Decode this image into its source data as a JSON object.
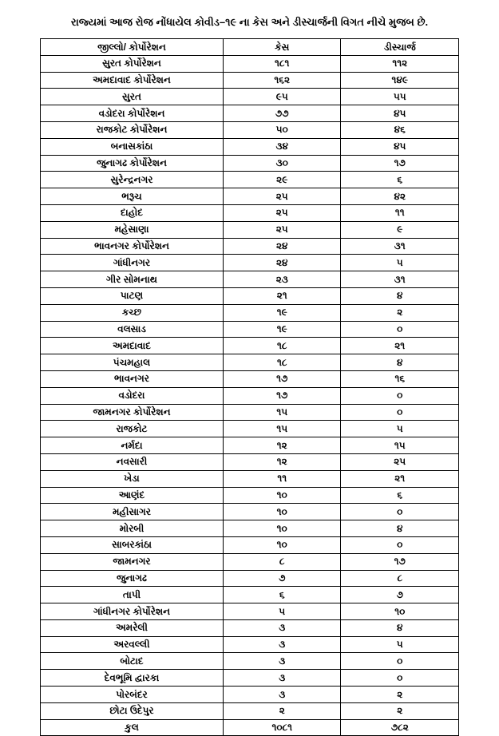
{
  "title": "રાજ્યમાં આજ રોજ નોંધાયેલ કોવીડ–૧૯ ના કેસ અને ડીસ્ચાર્જની વિગત નીચે મુજબ છે.",
  "columns": [
    "જીલ્લો/ કોર્પોરેશન",
    "કેસ",
    "ડીસ્ચાર્જ"
  ],
  "rows": [
    [
      "સુરત કોર્પોરેશન",
      "૧૮૧",
      "૧૧૨"
    ],
    [
      "અમદાવાદ કોર્પોરેશન",
      "૧૬૨",
      "૧૪૯"
    ],
    [
      "સુરત",
      "૯૫",
      "૫૫"
    ],
    [
      "વડોદરા કોર્પોરેશન",
      "૭૭",
      "૪૫"
    ],
    [
      "રાજકોટ કોર્પોરેશન",
      "૫૦",
      "૪૬"
    ],
    [
      "બનાસકાંઠા",
      "૩૪",
      "૪૫"
    ],
    [
      "જુનાગઢ કોર્પોરેશન",
      "૩૦",
      "૧૭"
    ],
    [
      "સુરેન્દ્રનગર",
      "૨૯",
      "૬"
    ],
    [
      "ભરૂચ",
      "૨૫",
      "૪૨"
    ],
    [
      "દાહોદ",
      "૨૫",
      "૧૧"
    ],
    [
      "મહેસાણા",
      "૨૫",
      "૯"
    ],
    [
      "ભાવનગર કોર્પોરેશન",
      "૨૪",
      "૩૧"
    ],
    [
      "ગાંધીનગર",
      "૨૪",
      "૫"
    ],
    [
      "ગીર સોમનાથ",
      "૨૩",
      "૩૧"
    ],
    [
      "પાટણ",
      "૨૧",
      "૪"
    ],
    [
      "કચ્છ",
      "૧૯",
      "૨"
    ],
    [
      "વલસાડ",
      "૧૯",
      "૦"
    ],
    [
      "અમદાવાદ",
      "૧૮",
      "૨૧"
    ],
    [
      "પંચમહાલ",
      "૧૮",
      "૪"
    ],
    [
      "ભાવનગર",
      "૧૭",
      "૧૬"
    ],
    [
      "વડોદરા",
      "૧૭",
      "૦"
    ],
    [
      "જામનગર કોર્પોરેશન",
      "૧૫",
      "૦"
    ],
    [
      "રાજકોટ",
      "૧૫",
      "૫"
    ],
    [
      "નર્મદા",
      "૧૨",
      "૧૫"
    ],
    [
      "નવસારી",
      "૧૨",
      "૨૫"
    ],
    [
      "ખેડા",
      "૧૧",
      "૨૧"
    ],
    [
      "આણંદ",
      "૧૦",
      "૬"
    ],
    [
      "મહીસાગર",
      "૧૦",
      "૦"
    ],
    [
      "મોરબી",
      "૧૦",
      "૪"
    ],
    [
      "સાબરકાંઠા",
      "૧૦",
      "૦"
    ],
    [
      "જામનગર",
      "૮",
      "૧૭"
    ],
    [
      "જુનાગઢ",
      "૭",
      "૮"
    ],
    [
      "તાપી",
      "૬",
      "૭"
    ],
    [
      "ગાંધીનગર કોર્પોરેશન",
      "૫",
      "૧૦"
    ],
    [
      "અમરેલી",
      "૩",
      "૪"
    ],
    [
      "અરવલ્લી",
      "૩",
      "૫"
    ],
    [
      "બોટાદ",
      "૩",
      "૦"
    ],
    [
      "દેવભૂમિ દ્વારકા",
      "૩",
      "૦"
    ],
    [
      "પોરબંદર",
      "૩",
      "૨"
    ],
    [
      "છોટા ઉદેપુર",
      "૨",
      "૨"
    ],
    [
      "કુલ",
      "૧૦૮૧",
      "૭૮૨"
    ]
  ],
  "styling": {
    "page_bg": "#ffffff",
    "text_color": "#000000",
    "border_color": "#000000",
    "title_fontsize": 13,
    "cell_fontsize": 12,
    "col_widths_pct": [
      44,
      28,
      28
    ]
  }
}
